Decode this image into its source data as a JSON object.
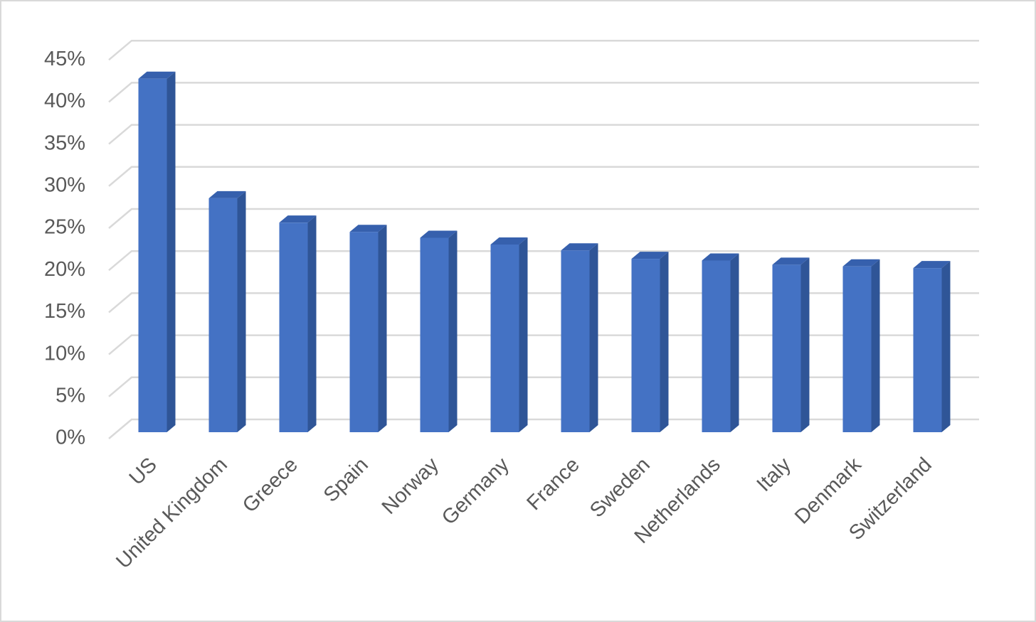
{
  "chart_data": {
    "type": "bar3d",
    "categories": [
      "US",
      "United Kingdom",
      "Greece",
      "Spain",
      "Norway",
      "Germany",
      "France",
      "Sweden",
      "Netherlands",
      "Italy",
      "Denmark",
      "Switzerland"
    ],
    "values": [
      42,
      27.8,
      24.9,
      23.8,
      23.1,
      22.3,
      21.6,
      20.6,
      20.4,
      19.9,
      19.7,
      19.5
    ],
    "color": "#4472c4",
    "ylim": [
      0,
      45
    ],
    "yticks": [
      {
        "value": 0,
        "label": "0%"
      },
      {
        "value": 5,
        "label": "5%"
      },
      {
        "value": 10,
        "label": "10%"
      },
      {
        "value": 15,
        "label": "15%"
      },
      {
        "value": 20,
        "label": "20%"
      },
      {
        "value": 25,
        "label": "25%"
      },
      {
        "value": 30,
        "label": "30%"
      },
      {
        "value": 35,
        "label": "35%"
      },
      {
        "value": 40,
        "label": "40%"
      },
      {
        "value": 45,
        "label": "45%"
      }
    ],
    "grid": true
  }
}
